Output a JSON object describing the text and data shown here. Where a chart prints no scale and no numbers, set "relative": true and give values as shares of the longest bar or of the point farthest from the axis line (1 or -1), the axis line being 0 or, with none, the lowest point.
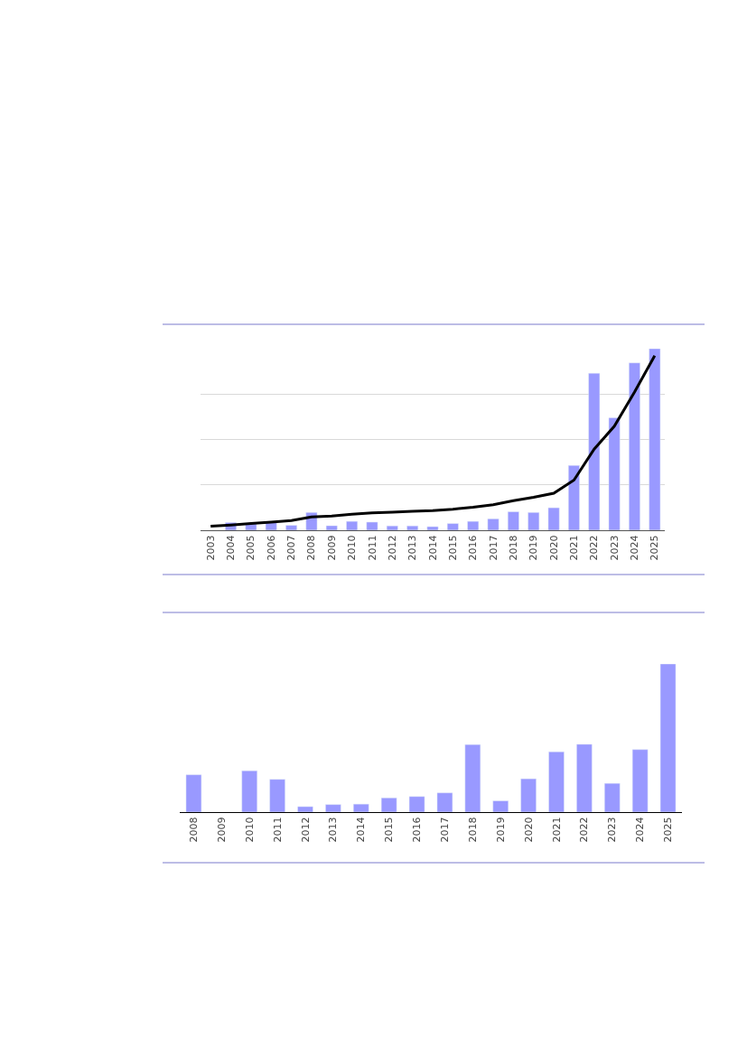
{
  "chart_data": [
    {
      "type": "bar",
      "relative": true,
      "grid": "y",
      "categories": [
        "2003",
        "2004",
        "2005",
        "2006",
        "2007",
        "2008",
        "2009",
        "2010",
        "2011",
        "2012",
        "2013",
        "2014",
        "2015",
        "2016",
        "2017",
        "2018",
        "2019",
        "2020",
        "2021",
        "2022",
        "2023",
        "2024",
        "2025"
      ],
      "series": [
        {
          "type": "bar",
          "color": "#9999ff",
          "values": [
            null,
            0.043,
            0.035,
            0.043,
            0.027,
            0.098,
            0.025,
            0.049,
            0.045,
            0.024,
            0.024,
            0.02,
            0.037,
            0.049,
            0.063,
            0.102,
            0.098,
            0.124,
            0.357,
            0.865,
            0.62,
            0.922,
            1
          ]
        },
        {
          "type": "line",
          "color": "#000000",
          "values": [
            0.022,
            0.029,
            0.037,
            0.045,
            0.053,
            0.073,
            0.078,
            0.088,
            0.096,
            0.1,
            0.104,
            0.108,
            0.116,
            0.127,
            0.141,
            0.163,
            0.182,
            0.204,
            0.276,
            0.447,
            0.573,
            0.761,
            0.961
          ]
        }
      ]
    },
    {
      "type": "bar",
      "relative": true,
      "categories": [
        "2008",
        "2009",
        "2010",
        "2011",
        "2012",
        "2013",
        "2014",
        "2015",
        "2016",
        "2017",
        "2018",
        "2019",
        "2020",
        "2021",
        "2022",
        "2023",
        "2024",
        "2025"
      ],
      "color": "#9999ff",
      "values": [
        0.252,
        null,
        0.279,
        0.221,
        0.037,
        0.051,
        0.054,
        0.096,
        0.105,
        0.13,
        0.456,
        0.076,
        0.225,
        0.407,
        0.458,
        0.194,
        0.422,
        1
      ]
    }
  ]
}
